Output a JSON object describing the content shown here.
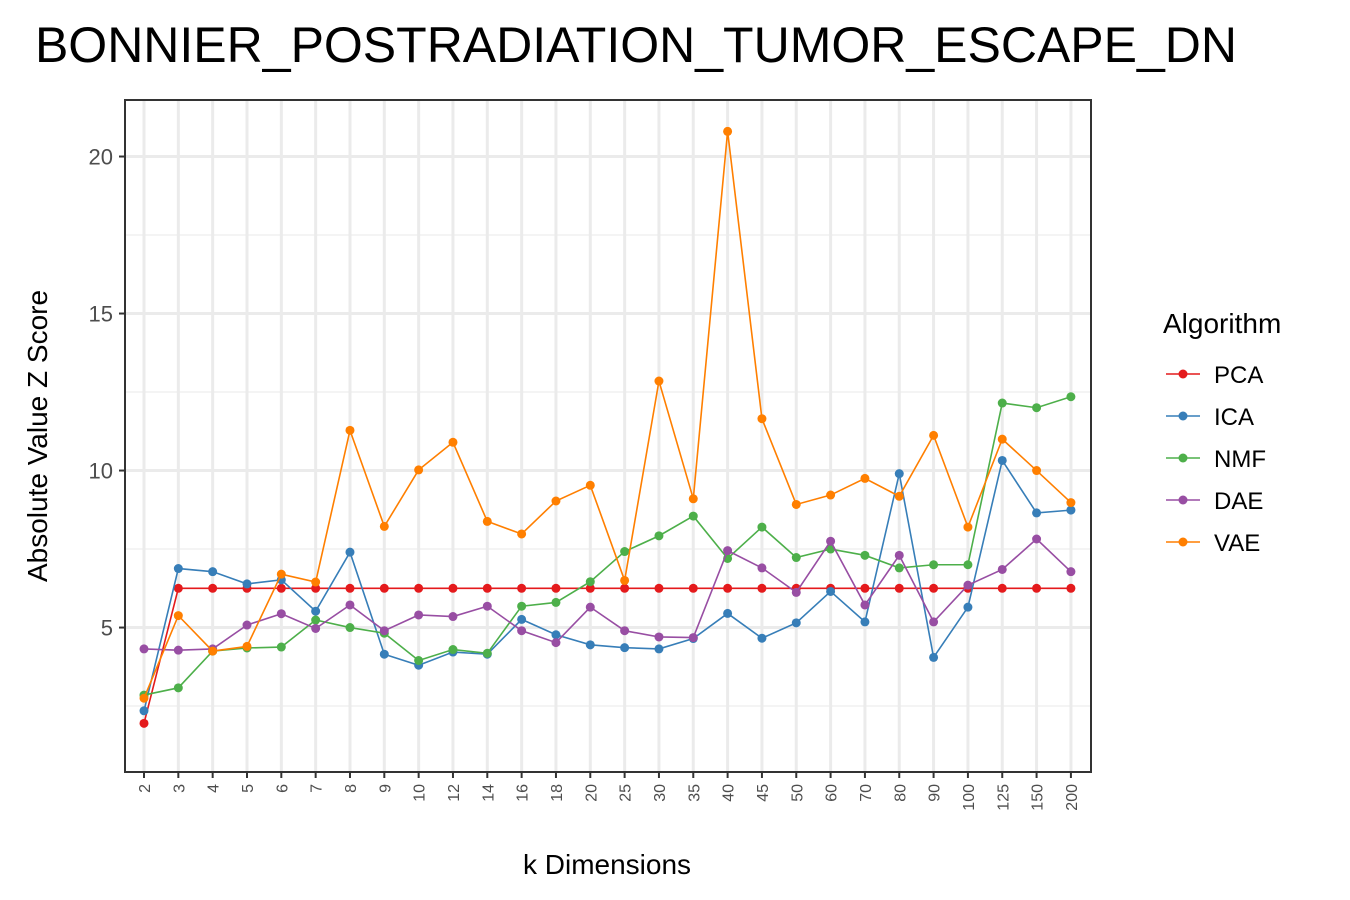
{
  "chart_data": {
    "type": "line",
    "title": "BONNIER_POSTRADIATION_TUMOR_ESCAPE_DN",
    "xlabel": "k Dimensions",
    "ylabel": "Absolute Value Z Score",
    "x": [
      "2",
      "3",
      "4",
      "5",
      "6",
      "7",
      "8",
      "9",
      "10",
      "12",
      "14",
      "16",
      "18",
      "20",
      "25",
      "30",
      "35",
      "40",
      "45",
      "50",
      "60",
      "70",
      "80",
      "90",
      "100",
      "125",
      "150",
      "200"
    ],
    "ylim": [
      0.4,
      21.8
    ],
    "yticks": [
      5,
      10,
      15,
      20
    ],
    "grid": true,
    "legend": {
      "title": "Algorithm",
      "position": "right"
    },
    "series": [
      {
        "name": "PCA",
        "color": "#e41a1c",
        "values": [
          1.95,
          6.25,
          6.25,
          6.25,
          6.25,
          6.25,
          6.25,
          6.25,
          6.25,
          6.25,
          6.25,
          6.25,
          6.25,
          6.25,
          6.25,
          6.25,
          6.25,
          6.25,
          6.25,
          6.25,
          6.25,
          6.25,
          6.25,
          6.25,
          6.25,
          6.25,
          6.25,
          6.25
        ]
      },
      {
        "name": "ICA",
        "color": "#377eb8",
        "values": [
          2.35,
          6.88,
          6.78,
          6.39,
          6.52,
          5.52,
          7.4,
          4.15,
          3.8,
          4.22,
          4.15,
          5.26,
          4.77,
          4.45,
          4.36,
          4.32,
          4.65,
          5.45,
          4.66,
          5.15,
          6.15,
          5.18,
          9.9,
          4.05,
          5.65,
          10.32,
          8.65,
          8.74
        ]
      },
      {
        "name": "NMF",
        "color": "#4daf4a",
        "values": [
          2.85,
          3.08,
          4.25,
          4.35,
          4.38,
          5.24,
          5.0,
          4.82,
          3.95,
          4.3,
          4.18,
          5.68,
          5.8,
          6.46,
          7.42,
          7.92,
          8.55,
          7.2,
          8.2,
          7.23,
          7.5,
          7.3,
          6.9,
          7.0,
          7.0,
          12.15,
          12.0,
          12.35
        ]
      },
      {
        "name": "DAE",
        "color": "#984ea3",
        "values": [
          4.32,
          4.28,
          4.32,
          5.08,
          5.44,
          4.97,
          5.72,
          4.9,
          5.4,
          5.35,
          5.68,
          4.9,
          4.52,
          5.65,
          4.9,
          4.7,
          4.68,
          7.45,
          6.9,
          6.12,
          7.75,
          5.72,
          7.3,
          5.18,
          6.35,
          6.85,
          7.82,
          6.78
        ]
      },
      {
        "name": "VAE",
        "color": "#ff7f00",
        "values": [
          2.75,
          5.38,
          4.25,
          4.4,
          6.7,
          6.45,
          11.28,
          8.22,
          10.02,
          10.9,
          8.38,
          7.98,
          9.03,
          9.53,
          6.5,
          12.85,
          9.1,
          20.8,
          11.65,
          8.92,
          9.22,
          9.75,
          9.18,
          11.12,
          8.2,
          11.0,
          10.0,
          8.98
        ]
      }
    ]
  }
}
